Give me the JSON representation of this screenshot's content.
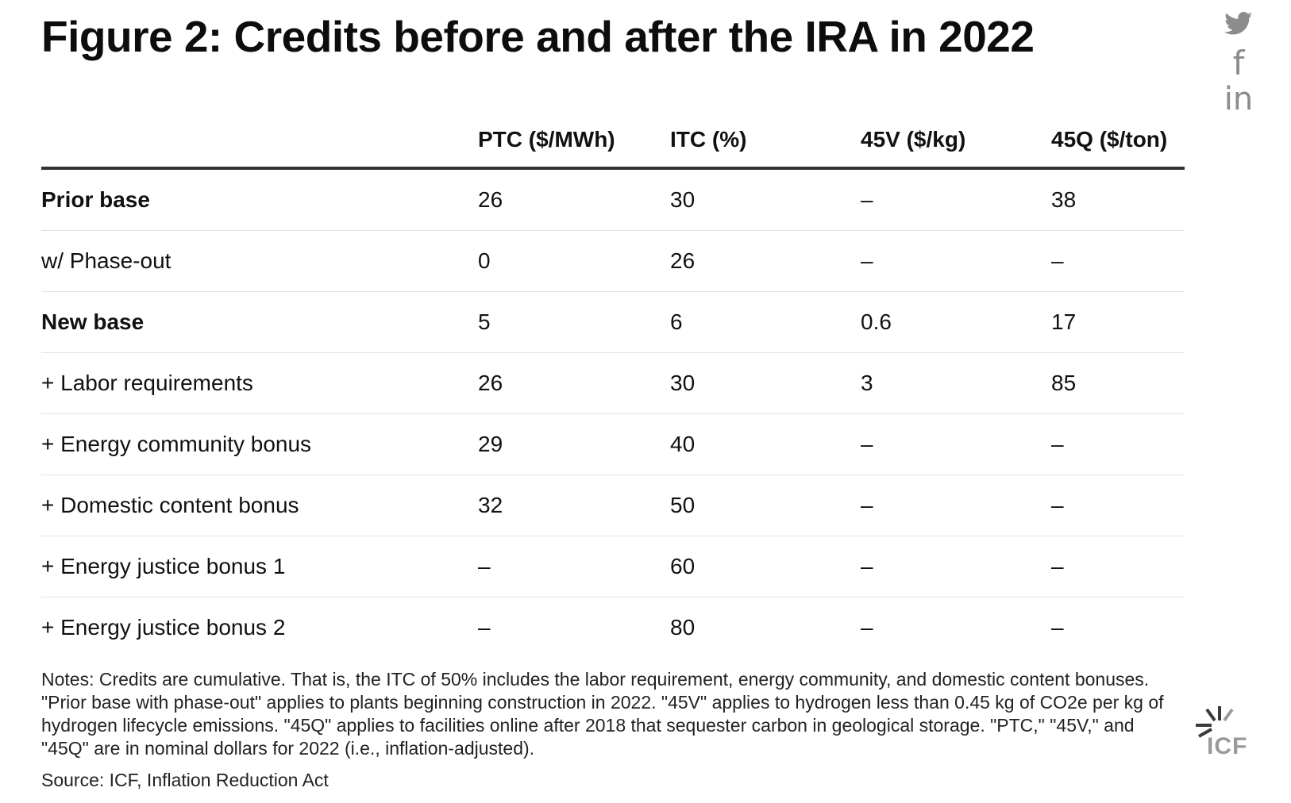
{
  "title": "Figure 2: Credits before and after the IRA in 2022",
  "social": {
    "twitter_icon": "twitter-icon",
    "facebook_icon": "facebook-icon",
    "facebook_glyph": "f",
    "linkedin_icon": "linkedin-icon",
    "linkedin_glyph": "in",
    "color": "#8c8c8c"
  },
  "chart_data": {
    "type": "table",
    "columns": [
      "",
      "PTC ($/MWh)",
      "ITC (%)",
      "45V ($/kg)",
      "45Q ($/ton)"
    ],
    "rows": [
      {
        "label": "Prior base",
        "bold": true,
        "values": [
          "26",
          "30",
          "–",
          "38"
        ]
      },
      {
        "label": "w/ Phase-out",
        "bold": false,
        "values": [
          "0",
          "26",
          "–",
          "–"
        ]
      },
      {
        "label": "New base",
        "bold": true,
        "values": [
          "5",
          "6",
          "0.6",
          "17"
        ]
      },
      {
        "label": "+ Labor requirements",
        "bold": false,
        "values": [
          "26",
          "30",
          "3",
          "85"
        ]
      },
      {
        "label": "+ Energy community bonus",
        "bold": false,
        "values": [
          "29",
          "40",
          "–",
          "–"
        ]
      },
      {
        "label": "+ Domestic content bonus",
        "bold": false,
        "values": [
          "32",
          "50",
          "–",
          "–"
        ]
      },
      {
        "label": "+ Energy justice bonus 1",
        "bold": false,
        "values": [
          "–",
          "60",
          "–",
          "–"
        ]
      },
      {
        "label": "+ Energy justice bonus 2",
        "bold": false,
        "values": [
          "–",
          "80",
          "–",
          "–"
        ]
      }
    ]
  },
  "notes": "Notes: Credits are cumulative. That is, the ITC of 50% includes the labor requirement, energy community, and domestic content bonuses. \"Prior base with phase-out\" applies to plants beginning construction in 2022. \"45V\" applies to hydrogen less than 0.45 kg of CO2e per kg of hydrogen lifecycle emissions. \"45Q\" applies to facilities online after 2018 that sequester carbon in geological storage. \"PTC,\" \"45V,\" and \"45Q\" are in nominal dollars for 2022 (i.e., inflation-adjusted).",
  "source": "Source: ICF, Inflation Reduction Act",
  "logo": {
    "text": "ICF",
    "icon": "icf-logo-icon",
    "colors": {
      "dark": "#3a3a3a",
      "light": "#9a9a9a"
    }
  }
}
